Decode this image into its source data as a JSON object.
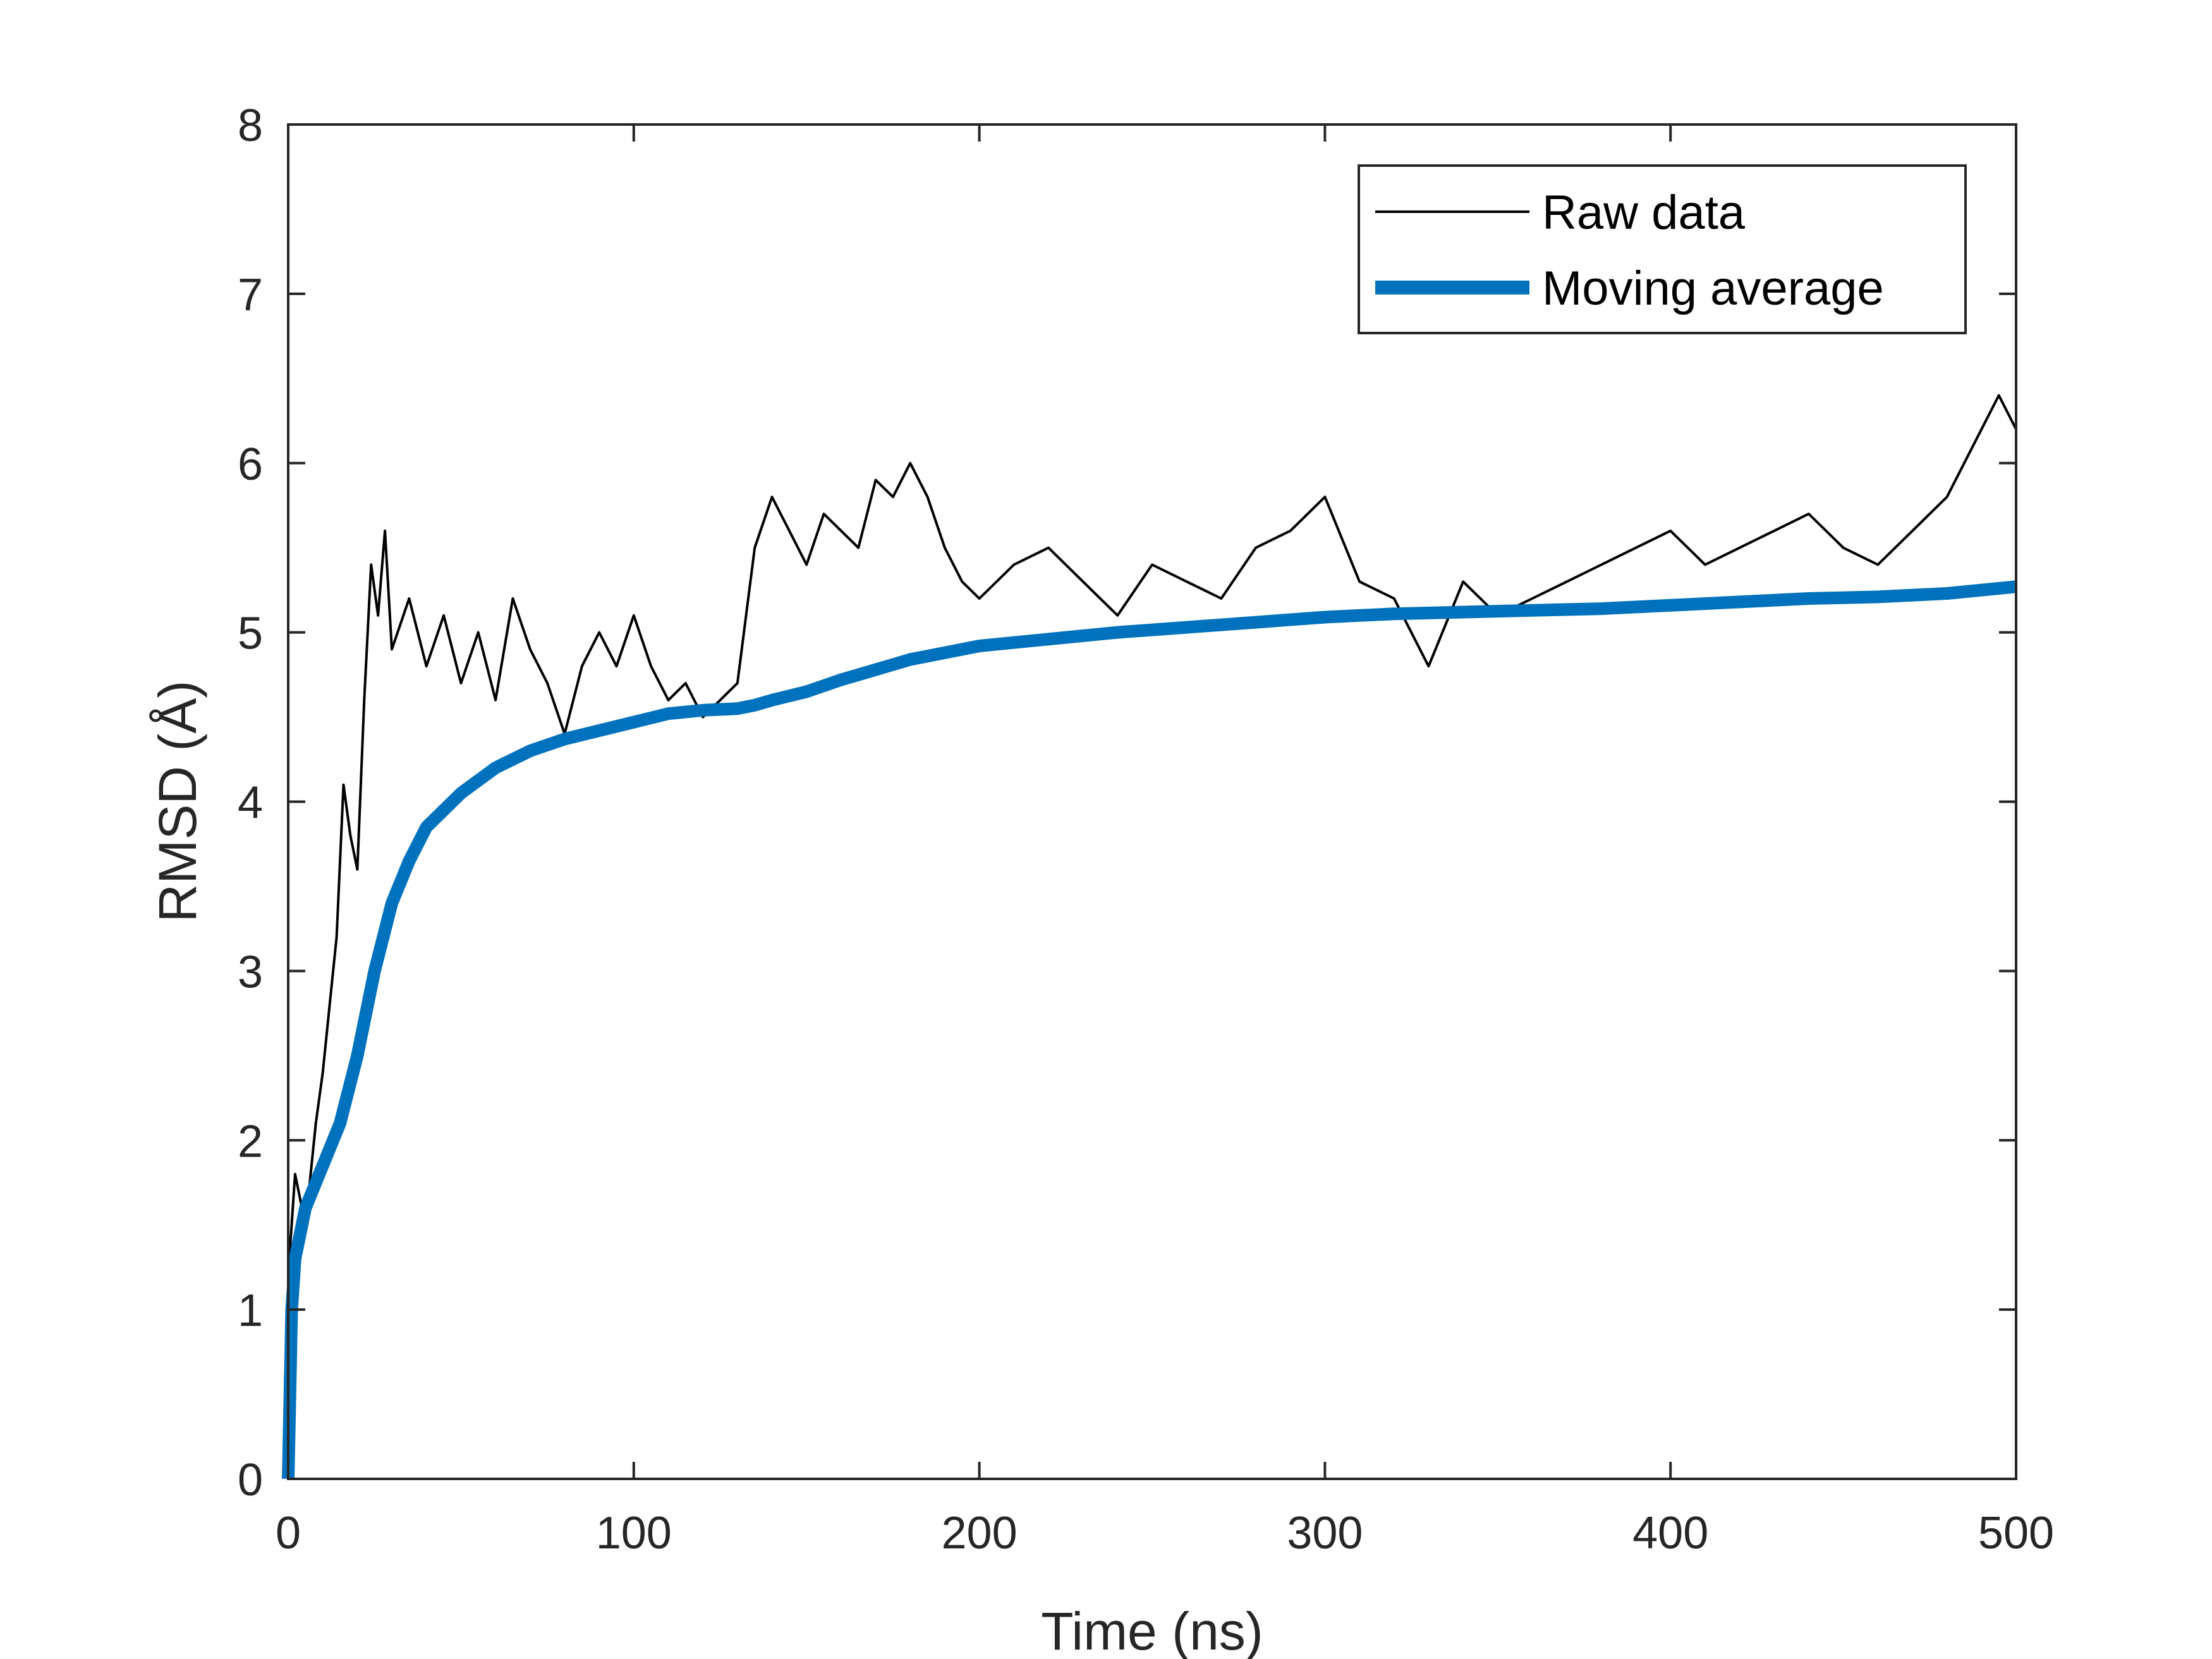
{
  "chart_data": {
    "type": "line",
    "title": "",
    "xlabel": "Time (ns)",
    "ylabel": "RMSD (Å)",
    "xlim": [
      0,
      500
    ],
    "ylim": [
      0,
      8
    ],
    "xticks": [
      "0",
      "100",
      "200",
      "300",
      "400",
      "500"
    ],
    "yticks": [
      "0",
      "1",
      "2",
      "3",
      "4",
      "5",
      "6",
      "7",
      "8"
    ],
    "grid": false,
    "legend_position": "top-right",
    "series": [
      {
        "name": "Raw data",
        "color": "#000000",
        "style": "thin",
        "x": [
          0,
          2,
          5,
          8,
          10,
          12,
          14,
          16,
          18,
          20,
          22,
          24,
          26,
          28,
          30,
          35,
          40,
          45,
          50,
          55,
          60,
          65,
          70,
          75,
          80,
          85,
          90,
          95,
          100,
          105,
          110,
          115,
          120,
          125,
          130,
          135,
          140,
          145,
          150,
          155,
          160,
          165,
          170,
          175,
          180,
          185,
          190,
          195,
          200,
          210,
          220,
          230,
          240,
          250,
          260,
          270,
          280,
          290,
          300,
          310,
          320,
          330,
          340,
          350,
          360,
          370,
          380,
          390,
          400,
          410,
          420,
          430,
          440,
          450,
          460,
          470,
          480,
          490,
          495,
          500
        ],
        "y": [
          1.2,
          1.8,
          1.5,
          2.1,
          2.4,
          2.8,
          3.2,
          4.1,
          3.8,
          3.6,
          4.6,
          5.4,
          5.1,
          5.6,
          4.9,
          5.2,
          4.8,
          5.1,
          4.7,
          5.0,
          4.6,
          5.2,
          4.9,
          4.7,
          4.4,
          4.8,
          5.0,
          4.8,
          5.1,
          4.8,
          4.6,
          4.7,
          4.5,
          4.6,
          4.7,
          5.5,
          5.8,
          5.6,
          5.4,
          5.7,
          5.6,
          5.5,
          5.9,
          5.8,
          6.0,
          5.8,
          5.5,
          5.3,
          5.2,
          5.4,
          5.5,
          5.3,
          5.1,
          5.4,
          5.3,
          5.2,
          5.5,
          5.6,
          5.8,
          5.3,
          5.2,
          4.8,
          5.3,
          5.1,
          5.2,
          5.3,
          5.4,
          5.5,
          5.6,
          5.4,
          5.5,
          5.6,
          5.7,
          5.5,
          5.4,
          5.6,
          5.8,
          6.2,
          6.4,
          6.2
        ]
      },
      {
        "name": "Moving average",
        "color": "#0072BD",
        "style": "thick",
        "x": [
          0,
          1,
          2,
          5,
          10,
          15,
          20,
          25,
          30,
          35,
          40,
          50,
          60,
          70,
          80,
          90,
          100,
          110,
          120,
          130,
          135,
          140,
          150,
          160,
          170,
          180,
          190,
          200,
          220,
          240,
          260,
          280,
          300,
          320,
          340,
          360,
          380,
          400,
          420,
          440,
          460,
          480,
          500
        ],
        "y": [
          0.0,
          1.0,
          1.3,
          1.6,
          1.85,
          2.1,
          2.5,
          3.0,
          3.4,
          3.65,
          3.85,
          4.05,
          4.2,
          4.3,
          4.37,
          4.42,
          4.47,
          4.52,
          4.54,
          4.55,
          4.57,
          4.6,
          4.65,
          4.72,
          4.78,
          4.84,
          4.88,
          4.92,
          4.96,
          5.0,
          5.03,
          5.06,
          5.09,
          5.11,
          5.12,
          5.13,
          5.14,
          5.16,
          5.18,
          5.2,
          5.21,
          5.23,
          5.27
        ]
      }
    ]
  }
}
